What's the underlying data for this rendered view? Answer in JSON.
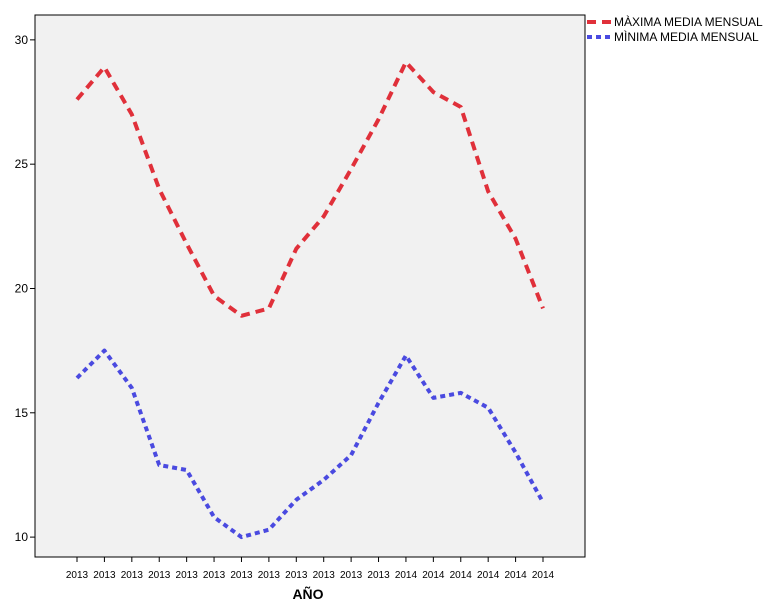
{
  "chart_data": {
    "type": "line",
    "title": "",
    "xlabel": "AÑO",
    "ylabel": "",
    "ylim": [
      9.2,
      31.0
    ],
    "yticks": [
      10,
      15,
      20,
      25,
      30
    ],
    "grid": false,
    "legend_position": "top-right",
    "categories": [
      "2013",
      "2013",
      "2013",
      "2013",
      "2013",
      "2013",
      "2013",
      "2013",
      "2013",
      "2013",
      "2013",
      "2013",
      "2014",
      "2014",
      "2014",
      "2014",
      "2014",
      "2014"
    ],
    "series": [
      {
        "name": "MÀXIMA MEDIA MENSUAL",
        "color": "#e0303a",
        "values": [
          27.6,
          28.9,
          27.0,
          24.0,
          21.8,
          19.7,
          18.9,
          19.2,
          21.6,
          22.9,
          24.8,
          26.8,
          29.1,
          27.9,
          27.3,
          23.9,
          22.0,
          19.2
        ]
      },
      {
        "name": "MÌNIMA MEDIA MENSUAL",
        "color": "#4a4ae0",
        "values": [
          16.4,
          17.5,
          16.0,
          12.9,
          12.7,
          10.8,
          10.0,
          10.3,
          11.5,
          12.3,
          13.3,
          15.4,
          17.3,
          15.6,
          15.8,
          15.2,
          13.4,
          11.4
        ]
      }
    ]
  }
}
